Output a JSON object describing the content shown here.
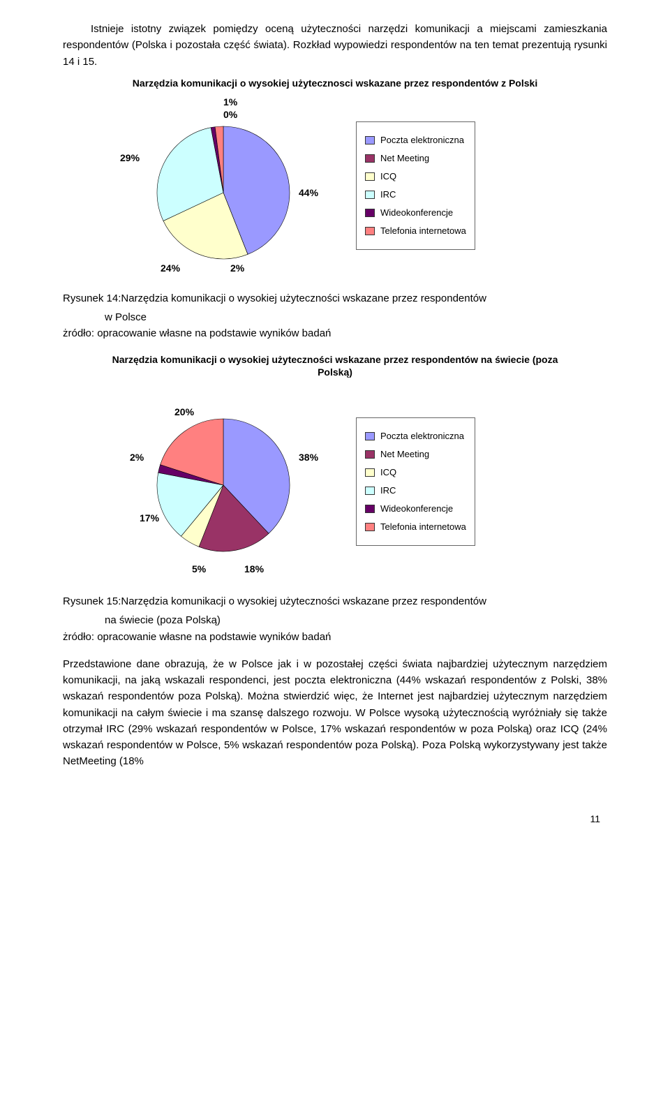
{
  "colors": {
    "poczta": "#9a99ff",
    "netmeeting": "#993366",
    "icq": "#ffffcc",
    "irc": "#ccffff",
    "wideo": "#660066",
    "telefonia": "#ff8080"
  },
  "intro": {
    "p1_indent": "Istnieje istotny związek pomiędzy oceną użyteczności narzędzi komunikacji a miejscami zamieszkania respondentów (Polska i pozostała część świata). Rozkład wypowiedzi respondentów na ten temat prezentują rysunki 14 i 15."
  },
  "chart1": {
    "title": "Narzędzia komunikacji o wysokiej użytecznosci wskazane przez respondentów z Polski",
    "type": "pie",
    "series": [
      {
        "name": "Poczta elektroniczna",
        "value": 44,
        "color_key": "poczta"
      },
      {
        "name": "Net Meeting",
        "value": 0,
        "color_key": "netmeeting"
      },
      {
        "name": "ICQ",
        "value": 24,
        "color_key": "icq"
      },
      {
        "name": "IRC",
        "value": 29,
        "color_key": "irc"
      },
      {
        "name": "Wideokonferencje",
        "value": 1,
        "color_key": "wideo"
      },
      {
        "name": "Telefonia internetowa",
        "value": 2,
        "color_key": "telefonia"
      }
    ],
    "labels": {
      "l1": "1%",
      "l0": "0%",
      "l29": "29%",
      "l44": "44%",
      "l24": "24%",
      "l2": "2%"
    },
    "legend": [
      "Poczta elektroniczna",
      "Net Meeting",
      "ICQ",
      "IRC",
      "Wideokonferencje",
      "Telefonia internetowa"
    ]
  },
  "caption1": {
    "line1": "Rysunek 14:Narzędzia komunikacji o wysokiej użyteczności wskazane przez respondentów",
    "line2": "w Polsce",
    "source": "żródło: opracowanie własne na podstawie wyników badań"
  },
  "chart2": {
    "title": "Narzędzia komunikacji o wysokiej użyteczności wskazane przez respondentów na świecie (poza Polską)",
    "type": "pie",
    "series": [
      {
        "name": "Poczta elektroniczna",
        "value": 38,
        "color_key": "poczta"
      },
      {
        "name": "Net Meeting",
        "value": 18,
        "color_key": "netmeeting"
      },
      {
        "name": "ICQ",
        "value": 5,
        "color_key": "icq"
      },
      {
        "name": "IRC",
        "value": 17,
        "color_key": "irc"
      },
      {
        "name": "Wideokonferencje",
        "value": 2,
        "color_key": "wideo"
      },
      {
        "name": "Telefonia internetowa",
        "value": 20,
        "color_key": "telefonia"
      }
    ],
    "labels": {
      "l20": "20%",
      "l2": "2%",
      "l38": "38%",
      "l17": "17%",
      "l5": "5%",
      "l18": "18%"
    },
    "legend": [
      "Poczta elektroniczna",
      "Net Meeting",
      "ICQ",
      "IRC",
      "Wideokonferencje",
      "Telefonia internetowa"
    ]
  },
  "caption2": {
    "line1": "Rysunek 15:Narzędzia komunikacji o wysokiej użyteczności wskazane przez respondentów",
    "line2": "na świecie  (poza Polską)",
    "source": "żródło: opracowanie własne na podstawie wyników badań"
  },
  "body": {
    "p2": "Przedstawione dane obrazują, że w Polsce jak i w pozostałej części świata najbardziej użytecznym narzędziem komunikacji, na jaką wskazali respondenci, jest poczta elektroniczna (44% wskazań respondentów z Polski, 38% wskazań respondentów poza Polską). Można stwierdzić więc, że Internet jest najbardziej użytecznym narzędziem komunikacji na całym świecie i ma szansę dalszego rozwoju. W Polsce wysoką użytecznością wyróżniały się także otrzymał IRC (29% wskazań respondentów w Polsce, 17% wskazań respondentów w poza Polską) oraz ICQ (24% wskazań respondentów w Polsce, 5% wskazań respondentów poza Polską). Poza Polską wykorzystywany jest także NetMeeting (18%"
  },
  "pagenum": "11"
}
